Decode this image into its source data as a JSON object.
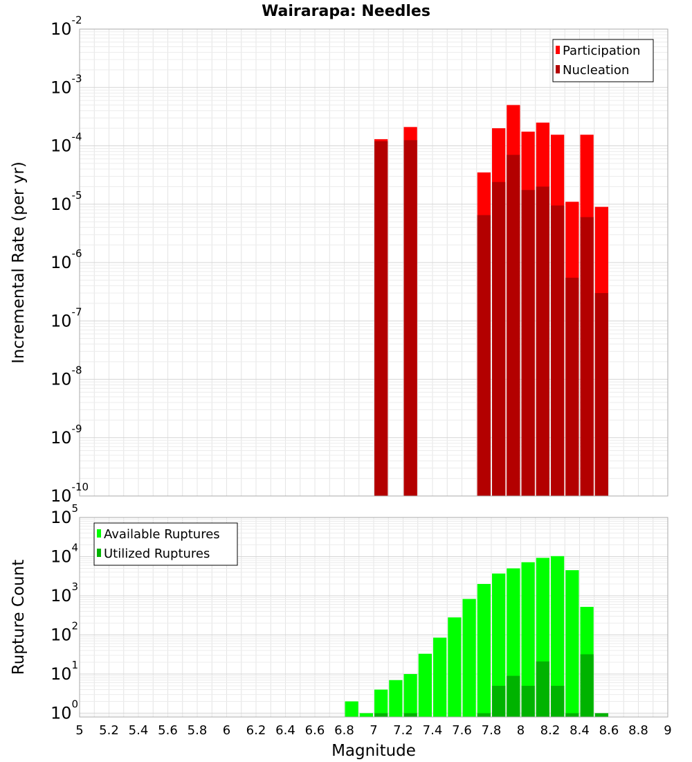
{
  "chart_data": [
    {
      "type": "bar",
      "title": "Wairarapa: Needles",
      "xlabel": "Magnitude",
      "ylabel": "Incremental Rate (per yr)",
      "yscale": "log",
      "ylim": [
        1e-10,
        0.01
      ],
      "xlim": [
        5,
        9
      ],
      "grid": true,
      "legend_position": "top-right",
      "x_ticks": [
        "5",
        "5.2",
        "5.4",
        "5.6",
        "5.8",
        "6",
        "6.2",
        "6.4",
        "6.6",
        "6.8",
        "7",
        "7.2",
        "7.4",
        "7.6",
        "7.8",
        "8",
        "8.2",
        "8.4",
        "8.6",
        "8.8",
        "9"
      ],
      "y_tick_exponents": [
        "-10",
        "-9",
        "-8",
        "-7",
        "-6",
        "-5",
        "-4",
        "-3",
        "-2"
      ],
      "x": [
        7.05,
        7.25,
        7.75,
        7.85,
        7.95,
        8.05,
        8.15,
        8.25,
        8.35,
        8.45,
        8.55
      ],
      "series": [
        {
          "name": "Participation",
          "color": "#ff0000",
          "values": [
            0.00013,
            0.00021,
            3.5e-05,
            0.0002,
            0.0005,
            0.000175,
            0.00025,
            0.000155,
            1.1e-05,
            0.000155,
            9e-06
          ]
        },
        {
          "name": "Nucleation",
          "color": "#b30000",
          "values": [
            0.00012,
            0.000125,
            6.5e-06,
            2.4e-05,
            7e-05,
            1.75e-05,
            2e-05,
            9.5e-06,
            5.5e-07,
            6e-06,
            3e-07
          ]
        }
      ]
    },
    {
      "type": "bar",
      "xlabel": "Magnitude",
      "ylabel": "Rupture Count",
      "yscale": "log",
      "ylim": [
        0.8,
        100000.0
      ],
      "xlim": [
        5,
        9
      ],
      "grid": true,
      "legend_position": "top-left",
      "x_ticks": [
        "5",
        "5.2",
        "5.4",
        "5.6",
        "5.8",
        "6",
        "6.2",
        "6.4",
        "6.6",
        "6.8",
        "7",
        "7.2",
        "7.4",
        "7.6",
        "7.8",
        "8",
        "8.2",
        "8.4",
        "8.6",
        "8.8",
        "9"
      ],
      "y_tick_exponents": [
        "0",
        "1",
        "2",
        "3",
        "4",
        "5"
      ],
      "x": [
        6.85,
        6.95,
        7.05,
        7.15,
        7.25,
        7.35,
        7.45,
        7.55,
        7.65,
        7.75,
        7.85,
        7.95,
        8.05,
        8.15,
        8.25,
        8.35,
        8.45,
        8.55
      ],
      "series": [
        {
          "name": "Available Ruptures",
          "color": "#00ff00",
          "values": [
            2,
            1,
            4,
            7,
            10,
            33,
            85,
            280,
            830,
            2000,
            3700,
            5000,
            7200,
            9300,
            10300,
            4500,
            520,
            0
          ]
        },
        {
          "name": "Utilized Ruptures",
          "color": "#00b300",
          "values": [
            0,
            0,
            1,
            0,
            1,
            0,
            0,
            0,
            0,
            1,
            5,
            9,
            5,
            21,
            5,
            1,
            32,
            1
          ]
        }
      ]
    }
  ]
}
